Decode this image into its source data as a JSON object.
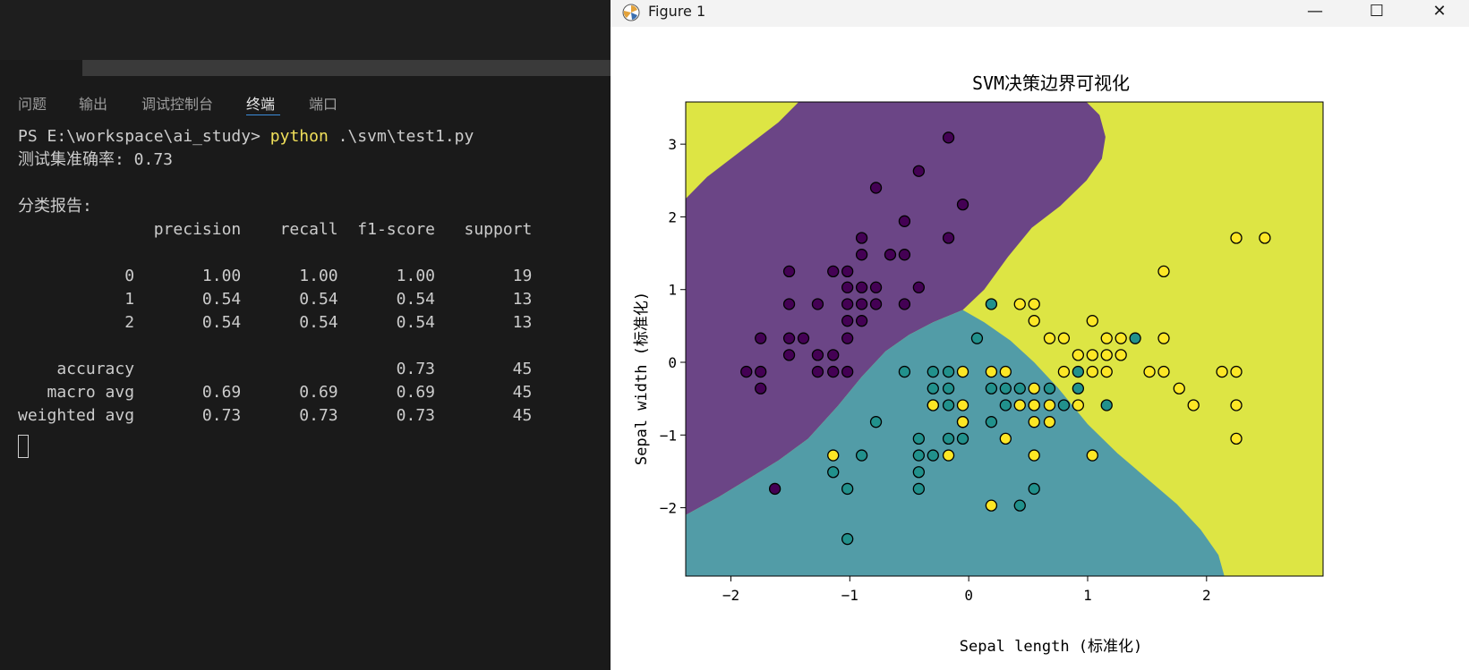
{
  "terminal": {
    "tabs": [
      "问题",
      "输出",
      "调试控制台",
      "终端",
      "端口"
    ],
    "active_tab": "终端",
    "prompt": "PS E:\\workspace\\ai_study> ",
    "command_keyword": "python",
    "command_arg": " .\\svm\\test1.py",
    "accuracy_line": "测试集准确率: 0.73",
    "report_heading": "分类报告:",
    "report_header": "              precision    recall  f1-score   support",
    "report_rows": [
      "           0       1.00      1.00      1.00        19",
      "           1       0.54      0.54      0.54        13",
      "           2       0.54      0.54      0.54        13",
      "",
      "    accuracy                           0.73        45",
      "   macro avg       0.69      0.69      0.69        45",
      "weighted avg       0.73      0.73      0.73        45"
    ]
  },
  "window": {
    "title": "Figure 1",
    "minimize_glyph": "—",
    "maximize_glyph": "☐",
    "close_glyph": "✕"
  },
  "colors": {
    "class0": "#440154",
    "class1": "#21918c",
    "class2": "#fde725",
    "region0": "#6b4586",
    "region1": "#529ca7",
    "region2": "#dde544"
  },
  "chart_data": {
    "type": "scatter",
    "title": "SVM决策边界可视化",
    "xlabel": "Sepal length (标准化)",
    "ylabel": "Sepal width (标准化)",
    "xlim": [
      -2.38,
      2.98
    ],
    "ylim": [
      -2.94,
      3.58
    ],
    "xticks": [
      -2,
      -1,
      0,
      1,
      2
    ],
    "yticks": [
      -2,
      -1,
      0,
      1,
      2,
      3
    ],
    "series": [
      {
        "class": 0,
        "points": [
          [
            -1.87,
            -0.13
          ],
          [
            -1.75,
            -0.13
          ],
          [
            -1.75,
            0.33
          ],
          [
            -1.75,
            -0.36
          ],
          [
            -1.51,
            1.25
          ],
          [
            -1.51,
            0.8
          ],
          [
            -1.51,
            0.33
          ],
          [
            -1.51,
            0.1
          ],
          [
            -1.39,
            0.33
          ],
          [
            -1.27,
            0.8
          ],
          [
            -1.27,
            0.1
          ],
          [
            -1.27,
            -0.13
          ],
          [
            -1.14,
            1.25
          ],
          [
            -1.14,
            0.1
          ],
          [
            -1.14,
            -0.13
          ],
          [
            -1.02,
            1.25
          ],
          [
            -1.02,
            1.03
          ],
          [
            -1.02,
            0.8
          ],
          [
            -1.02,
            0.57
          ],
          [
            -1.02,
            0.33
          ],
          [
            -1.02,
            -0.13
          ],
          [
            -0.9,
            1.71
          ],
          [
            -0.9,
            1.48
          ],
          [
            -0.9,
            1.03
          ],
          [
            -0.9,
            0.8
          ],
          [
            -0.9,
            0.57
          ],
          [
            -0.78,
            2.4
          ],
          [
            -0.78,
            1.03
          ],
          [
            -0.78,
            0.8
          ],
          [
            -0.66,
            1.48
          ],
          [
            -0.54,
            1.94
          ],
          [
            -0.54,
            1.48
          ],
          [
            -0.54,
            0.8
          ],
          [
            -0.42,
            2.63
          ],
          [
            -0.42,
            1.03
          ],
          [
            -0.17,
            3.09
          ],
          [
            -0.17,
            1.71
          ],
          [
            -0.05,
            2.17
          ],
          [
            -1.63,
            -1.74
          ]
        ]
      },
      {
        "class": 1,
        "points": [
          [
            -1.14,
            -1.51
          ],
          [
            -1.02,
            -1.74
          ],
          [
            -1.02,
            -2.43
          ],
          [
            -0.9,
            -1.28
          ],
          [
            -0.78,
            -0.82
          ],
          [
            -0.54,
            -0.13
          ],
          [
            -0.42,
            -1.05
          ],
          [
            -0.42,
            -1.28
          ],
          [
            -0.42,
            -1.51
          ],
          [
            -0.42,
            -1.74
          ],
          [
            -0.3,
            -0.13
          ],
          [
            -0.3,
            -0.36
          ],
          [
            -0.3,
            -0.59
          ],
          [
            -0.3,
            -1.28
          ],
          [
            -0.17,
            -0.13
          ],
          [
            -0.17,
            -0.36
          ],
          [
            -0.17,
            -0.59
          ],
          [
            -0.17,
            -1.05
          ],
          [
            -0.05,
            -0.82
          ],
          [
            -0.05,
            -1.05
          ],
          [
            0.07,
            0.33
          ],
          [
            0.19,
            0.8
          ],
          [
            0.19,
            -0.36
          ],
          [
            0.19,
            -0.82
          ],
          [
            0.31,
            -0.36
          ],
          [
            0.31,
            -0.59
          ],
          [
            0.43,
            -0.36
          ],
          [
            0.43,
            -1.97
          ],
          [
            0.55,
            -0.59
          ],
          [
            0.55,
            -1.74
          ],
          [
            0.68,
            -0.36
          ],
          [
            0.8,
            -0.59
          ],
          [
            0.92,
            -0.13
          ],
          [
            0.92,
            -0.36
          ],
          [
            1.16,
            -0.59
          ],
          [
            1.4,
            0.33
          ]
        ]
      },
      {
        "class": 2,
        "points": [
          [
            -1.14,
            -1.28
          ],
          [
            -0.17,
            -1.28
          ],
          [
            -0.05,
            -0.13
          ],
          [
            -0.05,
            -0.59
          ],
          [
            -0.05,
            -0.82
          ],
          [
            -0.3,
            -0.59
          ],
          [
            0.19,
            -0.13
          ],
          [
            0.19,
            -1.97
          ],
          [
            0.31,
            -0.13
          ],
          [
            0.31,
            -1.05
          ],
          [
            0.43,
            0.8
          ],
          [
            0.43,
            -0.59
          ],
          [
            0.55,
            0.8
          ],
          [
            0.55,
            0.57
          ],
          [
            0.55,
            -0.36
          ],
          [
            0.55,
            -0.59
          ],
          [
            0.55,
            -0.82
          ],
          [
            0.55,
            -1.28
          ],
          [
            0.68,
            0.33
          ],
          [
            0.68,
            -0.59
          ],
          [
            0.68,
            -0.82
          ],
          [
            0.8,
            0.33
          ],
          [
            0.8,
            -0.13
          ],
          [
            0.92,
            0.1
          ],
          [
            0.92,
            -0.59
          ],
          [
            1.04,
            0.57
          ],
          [
            1.04,
            0.1
          ],
          [
            1.04,
            -0.13
          ],
          [
            1.04,
            -1.28
          ],
          [
            1.16,
            0.33
          ],
          [
            1.16,
            0.1
          ],
          [
            1.16,
            -0.13
          ],
          [
            1.28,
            0.33
          ],
          [
            1.28,
            0.1
          ],
          [
            1.52,
            -0.13
          ],
          [
            1.64,
            1.25
          ],
          [
            1.64,
            0.33
          ],
          [
            1.64,
            -0.13
          ],
          [
            1.77,
            -0.36
          ],
          [
            1.89,
            -0.59
          ],
          [
            2.13,
            -0.13
          ],
          [
            2.25,
            1.71
          ],
          [
            2.25,
            -0.13
          ],
          [
            2.25,
            -0.59
          ],
          [
            2.25,
            -1.05
          ],
          [
            2.49,
            1.71
          ]
        ]
      }
    ]
  }
}
